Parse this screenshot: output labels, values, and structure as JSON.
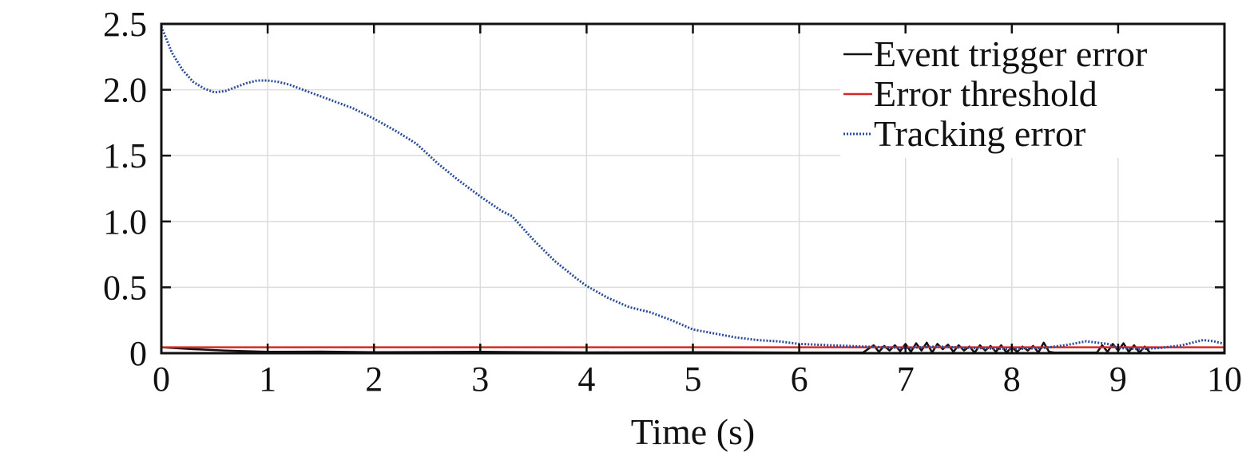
{
  "chart_data": {
    "type": "line",
    "title": "",
    "xlabel": "Time (s)",
    "ylabel": "",
    "xlim": [
      0,
      10
    ],
    "ylim": [
      0,
      2.5
    ],
    "xticks": [
      0,
      1,
      2,
      3,
      4,
      5,
      6,
      7,
      8,
      9,
      10
    ],
    "xtick_labels": [
      "0",
      "1",
      "2",
      "3",
      "4",
      "5",
      "6",
      "7",
      "8",
      "9",
      "10"
    ],
    "yticks": [
      0,
      0.5,
      1.0,
      1.5,
      2.0,
      2.5
    ],
    "ytick_labels": [
      "0",
      "0.5",
      "1.0",
      "1.5",
      "2.0",
      "2.5"
    ],
    "grid": true,
    "legend_position": "top-right",
    "series": [
      {
        "name": "Event trigger error",
        "color": "#111111",
        "style": "solid",
        "x": [
          0,
          0.3,
          0.6,
          1.0,
          1.5,
          2.0,
          3.0,
          4.0,
          5.0,
          6.0,
          6.6,
          6.7,
          6.75,
          6.8,
          6.85,
          6.9,
          6.95,
          7.0,
          7.05,
          7.1,
          7.15,
          7.2,
          7.25,
          7.3,
          7.35,
          7.4,
          7.45,
          7.5,
          7.55,
          7.6,
          7.65,
          7.7,
          7.75,
          7.8,
          7.85,
          7.9,
          7.95,
          8.0,
          8.05,
          8.1,
          8.15,
          8.2,
          8.25,
          8.3,
          8.35,
          8.4,
          8.8,
          8.85,
          8.9,
          8.95,
          9.0,
          9.05,
          9.1,
          9.15,
          9.2,
          9.25,
          9.3,
          9.4,
          9.6,
          10.0
        ],
        "y": [
          0.045,
          0.03,
          0.02,
          0.01,
          0.012,
          0.008,
          0.01,
          0.006,
          0.008,
          0.005,
          0.005,
          0.06,
          0.01,
          0.055,
          0.02,
          0.06,
          0.015,
          0.07,
          0.01,
          0.075,
          0.02,
          0.08,
          0.005,
          0.07,
          0.03,
          0.065,
          0.01,
          0.06,
          0.02,
          0.05,
          0.005,
          0.06,
          0.02,
          0.055,
          0.01,
          0.06,
          0.005,
          0.045,
          0.01,
          0.05,
          0.02,
          0.055,
          0.005,
          0.08,
          0.01,
          0.005,
          0.005,
          0.06,
          0.01,
          0.07,
          0.02,
          0.075,
          0.01,
          0.06,
          0.005,
          0.05,
          0.005,
          0.005,
          0.005,
          0.005
        ]
      },
      {
        "name": "Error threshold",
        "color": "#d62728",
        "style": "solid",
        "x": [
          0,
          10
        ],
        "y": [
          0.045,
          0.045
        ]
      },
      {
        "name": "Tracking error",
        "color": "#2b4c9b",
        "style": "dotted",
        "x": [
          0,
          0.1,
          0.2,
          0.3,
          0.4,
          0.5,
          0.6,
          0.7,
          0.8,
          0.9,
          1.0,
          1.1,
          1.2,
          1.4,
          1.6,
          1.8,
          2.0,
          2.2,
          2.4,
          2.6,
          2.8,
          3.0,
          3.2,
          3.3,
          3.5,
          3.7,
          3.9,
          4.0,
          4.2,
          4.4,
          4.6,
          4.8,
          5.0,
          5.2,
          5.4,
          5.6,
          5.8,
          6.0,
          6.3,
          6.6,
          7.0,
          7.3,
          7.6,
          8.0,
          8.3,
          8.5,
          8.7,
          8.9,
          9.0,
          9.2,
          9.4,
          9.6,
          9.8,
          9.9,
          10.0
        ],
        "y": [
          2.48,
          2.28,
          2.15,
          2.06,
          2.01,
          1.98,
          1.99,
          2.02,
          2.05,
          2.07,
          2.07,
          2.06,
          2.04,
          1.98,
          1.92,
          1.86,
          1.78,
          1.69,
          1.59,
          1.44,
          1.31,
          1.19,
          1.08,
          1.04,
          0.86,
          0.7,
          0.57,
          0.51,
          0.42,
          0.35,
          0.31,
          0.25,
          0.18,
          0.15,
          0.12,
          0.1,
          0.09,
          0.07,
          0.06,
          0.05,
          0.04,
          0.05,
          0.04,
          0.03,
          0.04,
          0.06,
          0.09,
          0.07,
          0.04,
          0.03,
          0.04,
          0.06,
          0.1,
          0.09,
          0.07
        ]
      }
    ]
  }
}
